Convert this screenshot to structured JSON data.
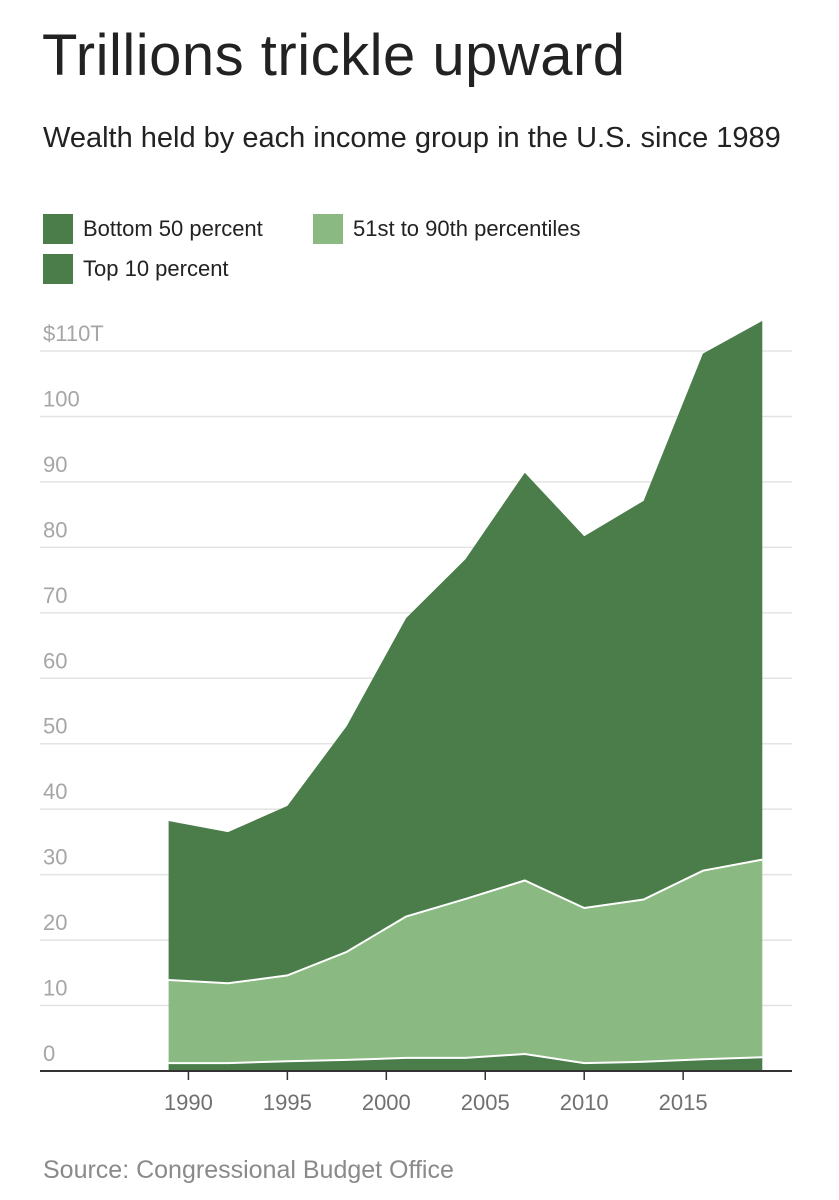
{
  "chart_data": {
    "type": "area",
    "stacked": true,
    "title": "Trillions trickle upward",
    "subtitle": "Wealth held by each income group in the U.S. since 1989",
    "source": "Source: Congressional Budget Office",
    "x": [
      1989,
      1992,
      1995,
      1998,
      2001,
      2004,
      2007,
      2010,
      2013,
      2016,
      2019
    ],
    "series": [
      {
        "name": "Bottom 50 percent",
        "color": "#4a7d4a",
        "values": [
          1.2,
          1.2,
          1.5,
          1.7,
          2.0,
          2.0,
          2.6,
          1.2,
          1.4,
          1.8,
          2.1
        ]
      },
      {
        "name": "51st to 90th percentiles",
        "color": "#8aba82",
        "values": [
          12.7,
          12.2,
          13.1,
          16.5,
          21.6,
          24.3,
          26.5,
          23.7,
          24.8,
          28.8,
          30.2
        ]
      },
      {
        "name": "Top 10 percent",
        "color": "#4a7d4a",
        "values": [
          24.3,
          23.1,
          25.9,
          34.5,
          45.6,
          51.9,
          62.3,
          56.8,
          60.9,
          79.0,
          82.3
        ]
      }
    ],
    "ylim": [
      0,
      115
    ],
    "yticks": [
      0,
      10,
      20,
      30,
      40,
      50,
      60,
      70,
      80,
      90,
      100,
      110
    ],
    "ytick_labels": [
      "0",
      "10",
      "20",
      "30",
      "40",
      "50",
      "60",
      "70",
      "80",
      "90",
      "100",
      "$110T"
    ],
    "xticks": [
      1990,
      1995,
      2000,
      2005,
      2010,
      2015
    ],
    "xtick_labels": [
      "1990",
      "1995",
      "2000",
      "2005",
      "2010",
      "2015"
    ],
    "xlim": [
      1982.5,
      2020.5
    ],
    "grid": true,
    "legend": "top"
  }
}
